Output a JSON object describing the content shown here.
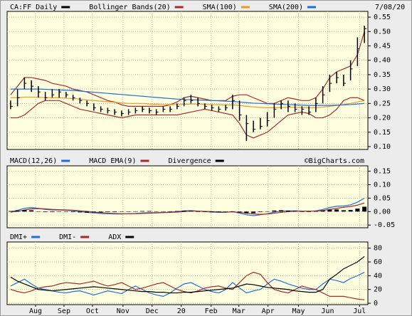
{
  "chart_data": [
    {
      "type": "price",
      "date": "7/08/20",
      "xlim": [
        -0.5,
        51.5
      ],
      "ylim": [
        0.09,
        0.57
      ],
      "grid": true,
      "x": [
        0,
        1,
        2,
        3,
        4,
        5,
        6,
        7,
        8,
        9,
        10,
        11,
        12,
        13,
        14,
        15,
        16,
        17,
        18,
        19,
        20,
        21,
        22,
        23,
        24,
        25,
        26,
        27,
        28,
        29,
        30,
        31,
        32,
        33,
        34,
        35,
        36,
        37,
        38,
        39,
        40,
        41,
        42,
        43,
        44,
        45,
        46,
        47,
        48,
        49,
        50,
        51
      ],
      "yticks": [
        {
          "value": 0.1,
          "label": "0.10"
        },
        0.15,
        {
          "value": 0.2,
          "label": "0.20"
        },
        0.25,
        {
          "value": 0.3,
          "label": "0.30"
        },
        0.35,
        {
          "value": 0.4,
          "label": "0.40"
        },
        0.45,
        {
          "value": 0.5,
          "label": "0.50"
        },
        0.55
      ],
      "series": [
        {
          "name": "CA:FF Daily",
          "style": "ohlc",
          "color": "#000000",
          "high": [
            0.26,
            0.3,
            0.34,
            0.33,
            0.31,
            0.29,
            0.3,
            0.3,
            0.29,
            0.28,
            0.27,
            0.26,
            0.25,
            0.24,
            0.235,
            0.23,
            0.225,
            0.23,
            0.235,
            0.24,
            0.235,
            0.23,
            0.24,
            0.24,
            0.25,
            0.27,
            0.28,
            0.27,
            0.25,
            0.245,
            0.24,
            0.245,
            0.28,
            0.26,
            0.21,
            0.19,
            0.2,
            0.22,
            0.25,
            0.26,
            0.26,
            0.25,
            0.24,
            0.24,
            0.27,
            0.31,
            0.35,
            0.36,
            0.35,
            0.4,
            0.48,
            0.52
          ],
          "low": [
            0.23,
            0.24,
            0.3,
            0.29,
            0.27,
            0.26,
            0.27,
            0.27,
            0.27,
            0.26,
            0.25,
            0.24,
            0.225,
            0.22,
            0.215,
            0.21,
            0.205,
            0.21,
            0.215,
            0.22,
            0.215,
            0.21,
            0.22,
            0.22,
            0.23,
            0.24,
            0.25,
            0.24,
            0.23,
            0.225,
            0.22,
            0.225,
            0.23,
            0.19,
            0.12,
            0.15,
            0.16,
            0.17,
            0.2,
            0.23,
            0.22,
            0.22,
            0.21,
            0.21,
            0.22,
            0.25,
            0.29,
            0.32,
            0.31,
            0.33,
            0.38,
            0.46
          ],
          "close": [
            0.24,
            0.27,
            0.32,
            0.31,
            0.29,
            0.27,
            0.28,
            0.29,
            0.28,
            0.27,
            0.26,
            0.25,
            0.235,
            0.23,
            0.225,
            0.22,
            0.215,
            0.22,
            0.225,
            0.23,
            0.225,
            0.22,
            0.23,
            0.23,
            0.24,
            0.26,
            0.26,
            0.25,
            0.24,
            0.235,
            0.23,
            0.235,
            0.26,
            0.21,
            0.18,
            0.16,
            0.17,
            0.19,
            0.23,
            0.25,
            0.24,
            0.23,
            0.23,
            0.22,
            0.25,
            0.28,
            0.32,
            0.34,
            0.32,
            0.37,
            0.44,
            0.51
          ]
        },
        {
          "name": "Bollinger Bands(20)",
          "style": "band",
          "color": "#a52a2a",
          "upper": [
            0.28,
            0.31,
            0.34,
            0.34,
            0.335,
            0.33,
            0.32,
            0.315,
            0.31,
            0.3,
            0.295,
            0.29,
            0.28,
            0.27,
            0.26,
            0.255,
            0.245,
            0.24,
            0.24,
            0.24,
            0.24,
            0.24,
            0.24,
            0.245,
            0.255,
            0.27,
            0.275,
            0.27,
            0.265,
            0.26,
            0.26,
            0.26,
            0.275,
            0.28,
            0.28,
            0.27,
            0.26,
            0.25,
            0.25,
            0.26,
            0.27,
            0.265,
            0.26,
            0.26,
            0.27,
            0.3,
            0.34,
            0.36,
            0.37,
            0.38,
            0.42,
            0.5
          ],
          "lower": [
            0.2,
            0.2,
            0.21,
            0.23,
            0.25,
            0.26,
            0.26,
            0.26,
            0.25,
            0.24,
            0.23,
            0.225,
            0.22,
            0.215,
            0.21,
            0.205,
            0.2,
            0.205,
            0.21,
            0.21,
            0.21,
            0.21,
            0.21,
            0.21,
            0.21,
            0.215,
            0.22,
            0.225,
            0.23,
            0.225,
            0.22,
            0.215,
            0.21,
            0.18,
            0.14,
            0.13,
            0.14,
            0.15,
            0.17,
            0.19,
            0.21,
            0.215,
            0.22,
            0.215,
            0.2,
            0.2,
            0.21,
            0.23,
            0.26,
            0.27,
            0.27,
            0.26
          ]
        },
        {
          "name": "SMA(100)",
          "style": "line",
          "color": "#e69a28",
          "values": [
            0.27,
            0.27,
            0.272,
            0.272,
            0.272,
            0.27,
            0.27,
            0.27,
            0.268,
            0.267,
            0.265,
            0.262,
            0.26,
            0.258,
            0.256,
            0.254,
            0.252,
            0.25,
            0.25,
            0.25,
            0.248,
            0.247,
            0.246,
            0.246,
            0.246,
            0.247,
            0.248,
            0.248,
            0.247,
            0.246,
            0.245,
            0.245,
            0.245,
            0.243,
            0.24,
            0.238,
            0.236,
            0.235,
            0.235,
            0.236,
            0.237,
            0.237,
            0.236,
            0.235,
            0.235,
            0.237,
            0.24,
            0.243,
            0.246,
            0.25,
            0.255,
            0.26
          ]
        },
        {
          "name": "SMA(200)",
          "style": "line",
          "color": "#1f6fd1",
          "values": [
            0.3,
            0.3,
            0.3,
            0.3,
            0.3,
            0.299,
            0.298,
            0.297,
            0.296,
            0.295,
            0.293,
            0.291,
            0.289,
            0.287,
            0.285,
            0.283,
            0.281,
            0.279,
            0.277,
            0.275,
            0.273,
            0.271,
            0.269,
            0.267,
            0.265,
            0.264,
            0.263,
            0.262,
            0.261,
            0.26,
            0.259,
            0.258,
            0.257,
            0.255,
            0.253,
            0.251,
            0.25,
            0.249,
            0.248,
            0.247,
            0.246,
            0.245,
            0.244,
            0.243,
            0.243,
            0.243,
            0.243,
            0.244,
            0.245,
            0.246,
            0.248,
            0.25
          ]
        }
      ]
    },
    {
      "type": "macd",
      "credit": "©BigCharts.com",
      "xlim": [
        -0.5,
        51.5
      ],
      "ylim": [
        -0.06,
        0.17
      ],
      "grid": true,
      "x": [
        0,
        1,
        2,
        3,
        4,
        5,
        6,
        7,
        8,
        9,
        10,
        11,
        12,
        13,
        14,
        15,
        16,
        17,
        18,
        19,
        20,
        21,
        22,
        23,
        24,
        25,
        26,
        27,
        28,
        29,
        30,
        31,
        32,
        33,
        34,
        35,
        36,
        37,
        38,
        39,
        40,
        41,
        42,
        43,
        44,
        45,
        46,
        47,
        48,
        49,
        50,
        51
      ],
      "yticks": [
        -0.05,
        {
          "value": 0,
          "label": "0.00"
        },
        0.05,
        {
          "value": 0.1,
          "label": "0.10"
        },
        0.15
      ],
      "series": [
        {
          "name": "MACD(12,26)",
          "style": "line",
          "color": "#1f6fd1",
          "values": [
            0.0,
            0.005,
            0.012,
            0.015,
            0.012,
            0.008,
            0.006,
            0.006,
            0.005,
            0.003,
            0.0,
            -0.003,
            -0.005,
            -0.007,
            -0.008,
            -0.009,
            -0.009,
            -0.008,
            -0.007,
            -0.005,
            -0.004,
            -0.004,
            -0.003,
            -0.002,
            0.0,
            0.003,
            0.004,
            0.002,
            0.0,
            -0.002,
            -0.003,
            -0.003,
            0.0,
            -0.006,
            -0.012,
            -0.015,
            -0.012,
            -0.008,
            -0.002,
            0.002,
            0.003,
            0.003,
            0.002,
            0.001,
            0.003,
            0.008,
            0.015,
            0.02,
            0.021,
            0.025,
            0.035,
            0.05
          ]
        },
        {
          "name": "MACD EMA(9)",
          "style": "line",
          "color": "#a52a2a",
          "values": [
            -0.002,
            0.001,
            0.006,
            0.01,
            0.011,
            0.01,
            0.008,
            0.007,
            0.006,
            0.005,
            0.003,
            0.001,
            -0.002,
            -0.004,
            -0.006,
            -0.007,
            -0.008,
            -0.008,
            -0.008,
            -0.007,
            -0.006,
            -0.005,
            -0.004,
            -0.003,
            -0.002,
            0.0,
            0.002,
            0.002,
            0.001,
            0.0,
            -0.001,
            -0.002,
            -0.001,
            -0.003,
            -0.006,
            -0.009,
            -0.01,
            -0.009,
            -0.006,
            -0.003,
            0.0,
            0.001,
            0.002,
            0.002,
            0.002,
            0.004,
            0.008,
            0.012,
            0.016,
            0.019,
            0.024,
            0.032
          ]
        },
        {
          "name": "Divergence",
          "style": "histogram",
          "color": "#000000",
          "values": [
            0.002,
            0.004,
            0.006,
            0.005,
            0.001,
            -0.002,
            -0.002,
            -0.001,
            -0.001,
            -0.002,
            -0.003,
            -0.004,
            -0.003,
            -0.003,
            -0.002,
            -0.002,
            -0.001,
            0.0,
            0.001,
            0.002,
            0.002,
            0.001,
            0.001,
            0.001,
            0.002,
            0.003,
            0.002,
            0.0,
            -0.001,
            -0.002,
            -0.002,
            -0.001,
            0.001,
            -0.003,
            -0.006,
            -0.006,
            -0.002,
            0.001,
            0.004,
            0.005,
            0.003,
            0.002,
            0.0,
            -0.001,
            0.001,
            0.004,
            0.007,
            0.008,
            0.005,
            0.006,
            0.011,
            0.018
          ]
        }
      ]
    },
    {
      "type": "line",
      "xlim": [
        -0.5,
        51.5
      ],
      "ylim": [
        -2,
        89
      ],
      "grid": true,
      "x": [
        0,
        1,
        2,
        3,
        4,
        5,
        6,
        7,
        8,
        9,
        10,
        11,
        12,
        13,
        14,
        15,
        16,
        17,
        18,
        19,
        20,
        21,
        22,
        23,
        24,
        25,
        26,
        27,
        28,
        29,
        30,
        31,
        32,
        33,
        34,
        35,
        36,
        37,
        38,
        39,
        40,
        41,
        42,
        43,
        44,
        45,
        46,
        47,
        48,
        49,
        50,
        51
      ],
      "yticks": [
        0,
        20,
        40,
        60,
        80
      ],
      "xticks": [
        {
          "value": 3.6,
          "label": "Aug"
        },
        {
          "value": 7.7,
          "label": "Sep"
        },
        {
          "value": 11.8,
          "label": "Oct"
        },
        {
          "value": 16.2,
          "label": "Nov"
        },
        {
          "value": 20.4,
          "label": "Dec"
        },
        {
          "value": 24.6,
          "label": "20"
        },
        {
          "value": 28.9,
          "label": "Feb"
        },
        {
          "value": 32.9,
          "label": "Mar"
        },
        {
          "value": 37.1,
          "label": "Apr"
        },
        {
          "value": 41.5,
          "label": "May"
        },
        {
          "value": 45.7,
          "label": "Jun"
        },
        {
          "value": 50.3,
          "label": "Jul"
        }
      ],
      "series": [
        {
          "name": "DMI+",
          "style": "line",
          "color": "#1f6fd1",
          "values": [
            25,
            30,
            35,
            28,
            22,
            20,
            18,
            16,
            15,
            17,
            18,
            15,
            12,
            15,
            18,
            16,
            14,
            20,
            25,
            20,
            15,
            12,
            10,
            15,
            22,
            28,
            30,
            25,
            20,
            17,
            15,
            20,
            30,
            22,
            15,
            18,
            20,
            28,
            35,
            32,
            28,
            25,
            22,
            20,
            20,
            28,
            35,
            33,
            30,
            36,
            40,
            45
          ]
        },
        {
          "name": "DMI-",
          "style": "line",
          "color": "#a52a2a",
          "values": [
            20,
            17,
            15,
            18,
            22,
            24,
            25,
            28,
            30,
            29,
            28,
            30,
            32,
            28,
            25,
            27,
            30,
            25,
            20,
            22,
            25,
            28,
            30,
            25,
            20,
            17,
            15,
            18,
            22,
            24,
            25,
            22,
            20,
            30,
            40,
            45,
            42,
            30,
            20,
            17,
            15,
            20,
            25,
            22,
            20,
            15,
            10,
            10,
            10,
            8,
            6,
            5
          ]
        },
        {
          "name": "ADX",
          "style": "line",
          "color": "#000000",
          "values": [
            38,
            32,
            28,
            24,
            20,
            19,
            18,
            19,
            20,
            21,
            22,
            23,
            24,
            23,
            22,
            21,
            20,
            19,
            18,
            17,
            17,
            16,
            16,
            15,
            15,
            16,
            16,
            17,
            18,
            19,
            20,
            21,
            22,
            25,
            28,
            27,
            25,
            23,
            22,
            21,
            20,
            18,
            17,
            16,
            16,
            20,
            35,
            42,
            50,
            55,
            60,
            68
          ]
        }
      ]
    }
  ]
}
